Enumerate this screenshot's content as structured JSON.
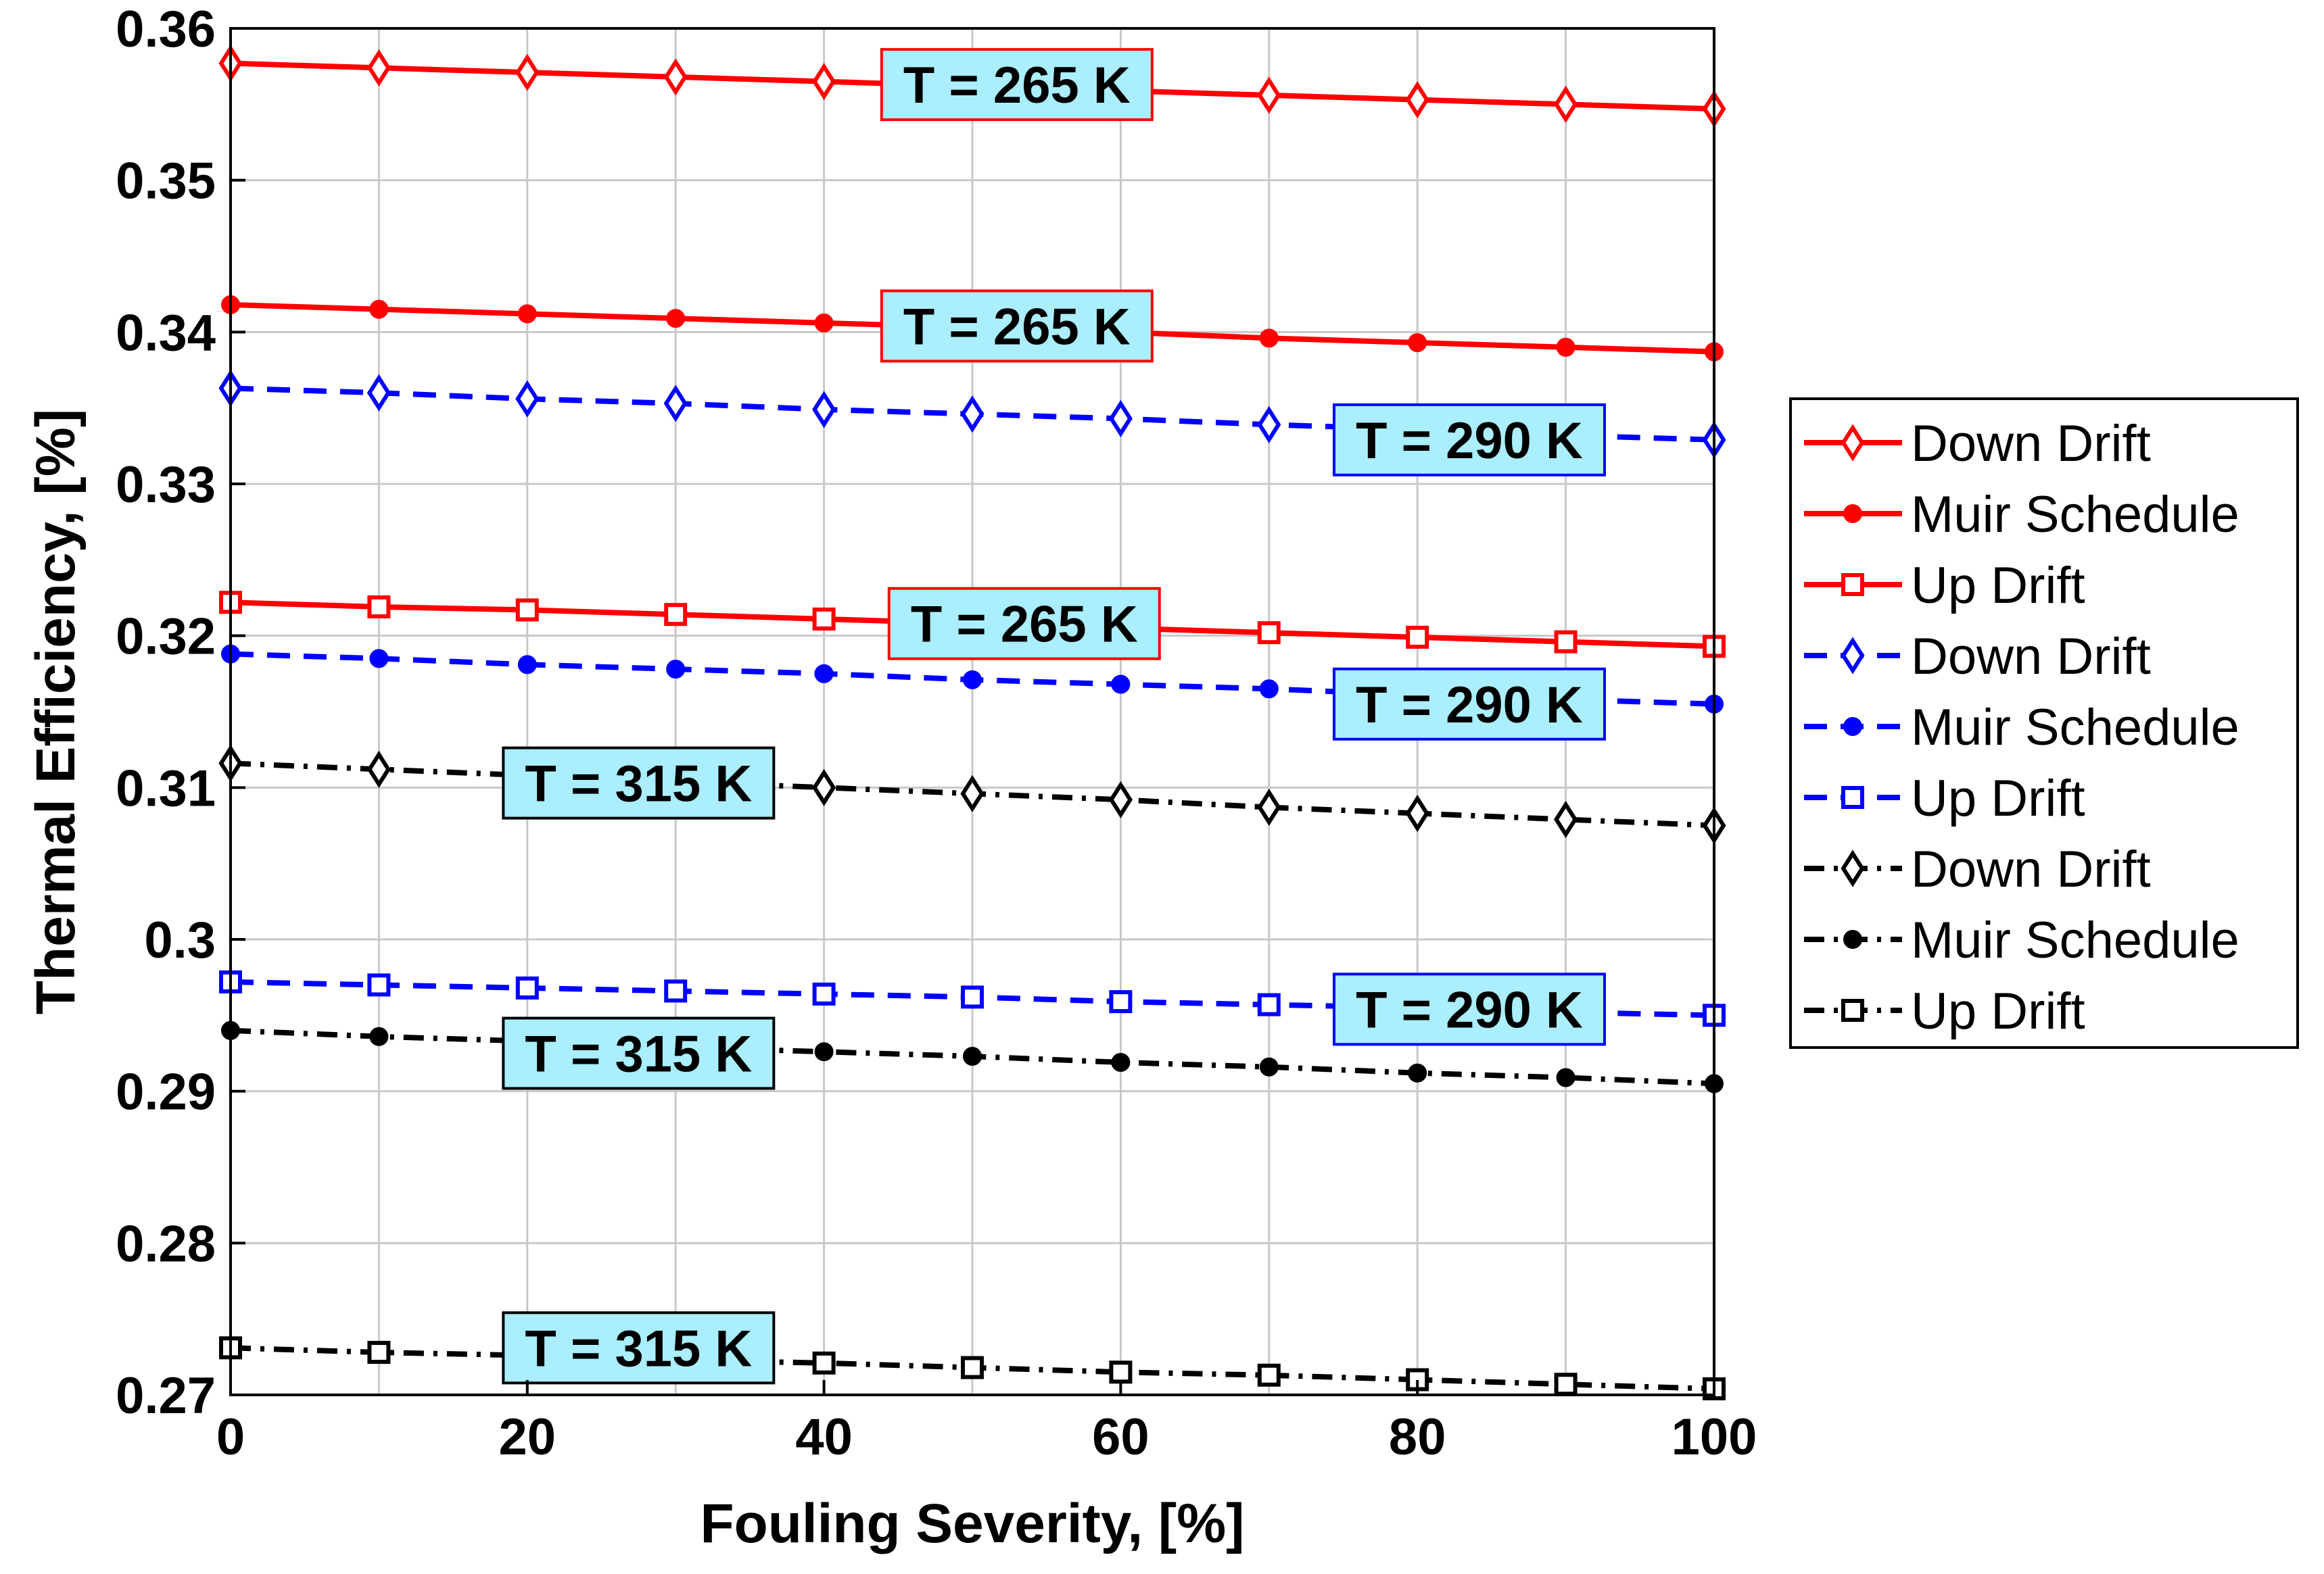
{
  "chart_data": {
    "type": "line",
    "xlabel": "Fouling Severity, [%]",
    "ylabel": "Thermal Efficiency, [%]",
    "xlim": [
      0,
      100
    ],
    "ylim": [
      0.27,
      0.36
    ],
    "grid": true,
    "legend_position": "outside-right",
    "x_ticks": [
      "0",
      "20",
      "40",
      "60",
      "80",
      "100"
    ],
    "y_ticks": [
      "0.27",
      "0.28",
      "0.29",
      "0.3",
      "0.31",
      "0.32",
      "0.33",
      "0.34",
      "0.35",
      "0.36"
    ],
    "x": [
      0,
      10,
      20,
      30,
      40,
      50,
      60,
      70,
      80,
      90,
      100
    ],
    "series": [
      {
        "name": "Down Drift",
        "temperature": "265 K",
        "color": "#ff0000",
        "line": "solid",
        "marker": "diamond",
        "values": [
          0.3577,
          0.3574,
          0.3571,
          0.3568,
          0.3565,
          0.3562,
          0.3559,
          0.3556,
          0.3553,
          0.355,
          0.3547
        ]
      },
      {
        "name": "Muir Schedule",
        "temperature": "265 K",
        "color": "#ff0000",
        "line": "solid",
        "marker": "circle",
        "values": [
          0.3418,
          0.3415,
          0.3412,
          0.3409,
          0.3406,
          0.3403,
          0.34,
          0.3396,
          0.3393,
          0.339,
          0.3387
        ]
      },
      {
        "name": "Up Drift",
        "temperature": "265 K",
        "color": "#ff0000",
        "line": "solid",
        "marker": "square",
        "values": [
          0.3222,
          0.3219,
          0.3217,
          0.3214,
          0.3211,
          0.3208,
          0.3205,
          0.3202,
          0.3199,
          0.3196,
          0.3193
        ]
      },
      {
        "name": "Down Drift",
        "temperature": "290 K",
        "color": "#0000ff",
        "line": "dashed",
        "marker": "diamond",
        "values": [
          0.3363,
          0.336,
          0.3356,
          0.3353,
          0.3349,
          0.3346,
          0.3343,
          0.3339,
          0.3336,
          0.3332,
          0.3329
        ]
      },
      {
        "name": "Muir Schedule",
        "temperature": "290 K",
        "color": "#0000ff",
        "line": "dashed",
        "marker": "circle",
        "values": [
          0.3188,
          0.3185,
          0.3181,
          0.3178,
          0.3175,
          0.3171,
          0.3168,
          0.3165,
          0.3161,
          0.3158,
          0.3155
        ]
      },
      {
        "name": "Up Drift",
        "temperature": "290 K",
        "color": "#0000ff",
        "line": "dashed",
        "marker": "square",
        "values": [
          0.2972,
          0.297,
          0.2968,
          0.2966,
          0.2964,
          0.2962,
          0.2959,
          0.2957,
          0.2955,
          0.2952,
          0.295
        ]
      },
      {
        "name": "Down Drift",
        "temperature": "315 K",
        "color": "#000000",
        "line": "dashdot",
        "marker": "diamond",
        "values": [
          0.3116,
          0.3112,
          0.3108,
          0.3104,
          0.31,
          0.3096,
          0.3092,
          0.3087,
          0.3083,
          0.3079,
          0.3075
        ]
      },
      {
        "name": "Muir Schedule",
        "temperature": "315 K",
        "color": "#000000",
        "line": "dashdot",
        "marker": "circle",
        "values": [
          0.294,
          0.2936,
          0.2933,
          0.2929,
          0.2926,
          0.2923,
          0.2919,
          0.2916,
          0.2912,
          0.2909,
          0.2905
        ]
      },
      {
        "name": "Up Drift",
        "temperature": "315 K",
        "color": "#000000",
        "line": "dashdot",
        "marker": "square",
        "values": [
          0.2731,
          0.2728,
          0.2726,
          0.2723,
          0.2721,
          0.2718,
          0.2715,
          0.2713,
          0.271,
          0.2707,
          0.2704
        ]
      }
    ],
    "annotations": [
      {
        "text": "T = 265 K",
        "x": 53,
        "y": 0.3563,
        "border_color": "#ff0000"
      },
      {
        "text": "T = 265 K",
        "x": 53,
        "y": 0.3404,
        "border_color": "#ff0000"
      },
      {
        "text": "T = 265 K",
        "x": 53.5,
        "y": 0.3208,
        "border_color": "#ff0000"
      },
      {
        "text": "T = 290 K",
        "x": 83.5,
        "y": 0.3329,
        "border_color": "#0000ff"
      },
      {
        "text": "T = 290 K",
        "x": 83.5,
        "y": 0.3155,
        "border_color": "#0000ff"
      },
      {
        "text": "T = 290 K",
        "x": 83.5,
        "y": 0.2954,
        "border_color": "#0000ff"
      },
      {
        "text": "T = 315 K",
        "x": 27.5,
        "y": 0.3103,
        "border_color": "#000000"
      },
      {
        "text": "T = 315 K",
        "x": 27.5,
        "y": 0.2925,
        "border_color": "#000000"
      },
      {
        "text": "T = 315 K",
        "x": 27.5,
        "y": 0.2731,
        "border_color": "#000000"
      }
    ],
    "annotation_fill": "#aaeeff"
  }
}
